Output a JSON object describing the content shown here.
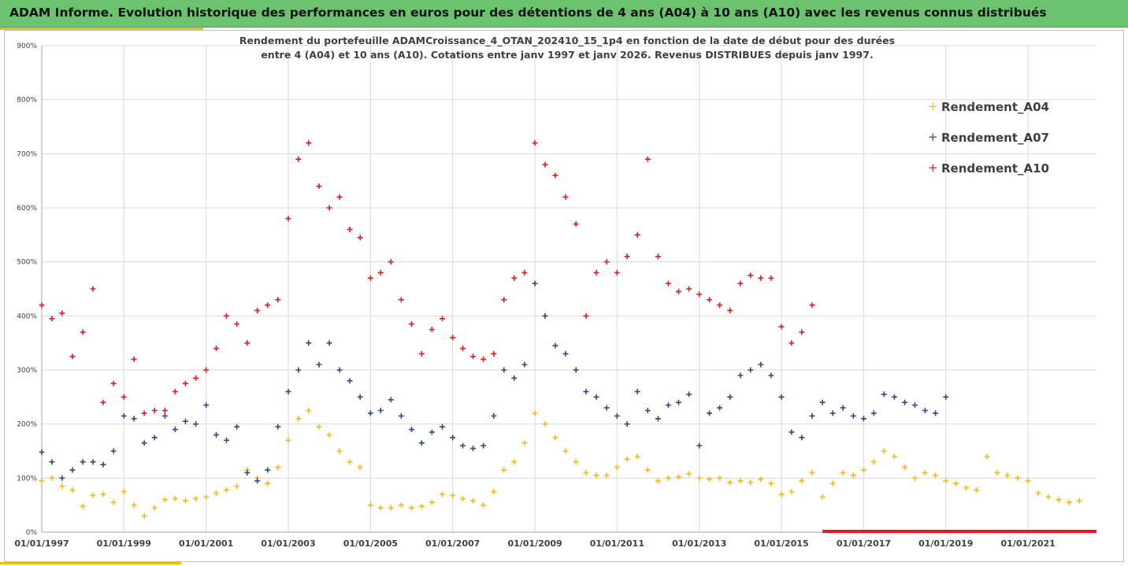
{
  "header": {
    "title": "ADAM Informe. Evolution historique des performances en euros pour des détentions de 4 ans (A04) à 10 ans (A10) avec les revenus connus distribués",
    "background_color": "#6cc36f",
    "accent_color": "#f0c000"
  },
  "chart_data": {
    "type": "scatter",
    "title_lines": [
      "Rendement du portefeuille ADAMCroissance_4_OTAN_202410_15_1p4  en fonction de la date de début pour des durées",
      "entre 4 (A04) et 10 ans (A10). Cotations entre janv 1997 et janv 2026. Revenus DISTRIBUES depuis janv 1997."
    ],
    "xlabel": "",
    "ylabel": "",
    "x_range": [
      "1997-01-01",
      "2022-09-01"
    ],
    "ylim": [
      0,
      900
    ],
    "y_ticks": [
      0,
      100,
      200,
      300,
      400,
      500,
      600,
      700,
      800,
      900
    ],
    "y_tick_labels": [
      "0%",
      "100%",
      "200%",
      "300%",
      "400%",
      "500%",
      "600%",
      "700%",
      "800%",
      "900%"
    ],
    "x_tick_labels": [
      "01/01/1997",
      "01/01/1999",
      "01/01/2001",
      "01/01/2003",
      "01/01/2005",
      "01/01/2007",
      "01/01/2009",
      "01/01/2011",
      "01/01/2013",
      "01/01/2015",
      "01/01/2017",
      "01/01/2019",
      "01/01/2021"
    ],
    "grid": true,
    "marker": "+",
    "legend_position": "right",
    "series": [
      {
        "name": "Rendement_A04",
        "color": "#f7b818",
        "points": [
          [
            "1997-01-01",
            95
          ],
          [
            "1997-04-01",
            100
          ],
          [
            "1997-07-01",
            85
          ],
          [
            "1997-10-01",
            78
          ],
          [
            "1998-01-01",
            48
          ],
          [
            "1998-04-01",
            68
          ],
          [
            "1998-07-01",
            70
          ],
          [
            "1998-10-01",
            55
          ],
          [
            "1999-01-01",
            75
          ],
          [
            "1999-04-01",
            50
          ],
          [
            "1999-07-01",
            30
          ],
          [
            "1999-10-01",
            45
          ],
          [
            "2000-01-01",
            60
          ],
          [
            "2000-04-01",
            62
          ],
          [
            "2000-07-01",
            58
          ],
          [
            "2000-10-01",
            62
          ],
          [
            "2001-01-01",
            65
          ],
          [
            "2001-04-01",
            72
          ],
          [
            "2001-07-01",
            78
          ],
          [
            "2001-10-01",
            85
          ],
          [
            "2002-01-01",
            115
          ],
          [
            "2002-04-01",
            100
          ],
          [
            "2002-07-01",
            90
          ],
          [
            "2002-10-01",
            120
          ],
          [
            "2003-01-01",
            170
          ],
          [
            "2003-04-01",
            210
          ],
          [
            "2003-07-01",
            225
          ],
          [
            "2003-10-01",
            195
          ],
          [
            "2004-01-01",
            180
          ],
          [
            "2004-04-01",
            150
          ],
          [
            "2004-07-01",
            130
          ],
          [
            "2004-10-01",
            120
          ],
          [
            "2005-01-01",
            50
          ],
          [
            "2005-04-01",
            45
          ],
          [
            "2005-07-01",
            45
          ],
          [
            "2005-10-01",
            50
          ],
          [
            "2006-01-01",
            45
          ],
          [
            "2006-04-01",
            48
          ],
          [
            "2006-07-01",
            55
          ],
          [
            "2006-10-01",
            70
          ],
          [
            "2007-01-01",
            68
          ],
          [
            "2007-04-01",
            62
          ],
          [
            "2007-07-01",
            58
          ],
          [
            "2007-10-01",
            50
          ],
          [
            "2008-01-01",
            75
          ],
          [
            "2008-04-01",
            115
          ],
          [
            "2008-07-01",
            130
          ],
          [
            "2008-10-01",
            165
          ],
          [
            "2009-01-01",
            220
          ],
          [
            "2009-04-01",
            200
          ],
          [
            "2009-07-01",
            175
          ],
          [
            "2009-10-01",
            150
          ],
          [
            "2010-01-01",
            130
          ],
          [
            "2010-04-01",
            110
          ],
          [
            "2010-07-01",
            105
          ],
          [
            "2010-10-01",
            105
          ],
          [
            "2011-01-01",
            120
          ],
          [
            "2011-04-01",
            135
          ],
          [
            "2011-07-01",
            140
          ],
          [
            "2011-10-01",
            115
          ],
          [
            "2012-01-01",
            95
          ],
          [
            "2012-04-01",
            100
          ],
          [
            "2012-07-01",
            102
          ],
          [
            "2012-10-01",
            108
          ],
          [
            "2013-01-01",
            100
          ],
          [
            "2013-04-01",
            98
          ],
          [
            "2013-07-01",
            100
          ],
          [
            "2013-10-01",
            92
          ],
          [
            "2014-01-01",
            95
          ],
          [
            "2014-04-01",
            92
          ],
          [
            "2014-07-01",
            98
          ],
          [
            "2014-10-01",
            90
          ],
          [
            "2015-01-01",
            70
          ],
          [
            "2015-04-01",
            75
          ],
          [
            "2015-07-01",
            95
          ],
          [
            "2015-10-01",
            110
          ],
          [
            "2016-01-01",
            65
          ],
          [
            "2016-04-01",
            90
          ],
          [
            "2016-07-01",
            110
          ],
          [
            "2016-10-01",
            105
          ],
          [
            "2017-01-01",
            115
          ],
          [
            "2017-04-01",
            130
          ],
          [
            "2017-07-01",
            150
          ],
          [
            "2017-10-01",
            140
          ],
          [
            "2018-01-01",
            120
          ],
          [
            "2018-04-01",
            100
          ],
          [
            "2018-07-01",
            110
          ],
          [
            "2018-10-01",
            105
          ],
          [
            "2019-01-01",
            95
          ],
          [
            "2019-04-01",
            90
          ],
          [
            "2019-07-01",
            82
          ],
          [
            "2019-10-01",
            78
          ],
          [
            "2020-01-01",
            140
          ],
          [
            "2020-04-01",
            110
          ],
          [
            "2020-07-01",
            105
          ],
          [
            "2020-10-01",
            100
          ],
          [
            "2021-01-01",
            95
          ],
          [
            "2021-04-01",
            72
          ],
          [
            "2021-07-01",
            65
          ],
          [
            "2021-10-01",
            60
          ],
          [
            "2022-01-01",
            55
          ],
          [
            "2022-04-01",
            58
          ]
        ]
      },
      {
        "name": "Rendement_A07",
        "color": "#2f4a7a",
        "points": [
          [
            "1997-01-01",
            148
          ],
          [
            "1997-04-01",
            130
          ],
          [
            "1997-07-01",
            100
          ],
          [
            "1997-10-01",
            115
          ],
          [
            "1998-01-01",
            130
          ],
          [
            "1998-04-01",
            130
          ],
          [
            "1998-07-01",
            125
          ],
          [
            "1998-10-01",
            150
          ],
          [
            "1999-01-01",
            215
          ],
          [
            "1999-04-01",
            210
          ],
          [
            "1999-07-01",
            165
          ],
          [
            "1999-10-01",
            175
          ],
          [
            "2000-01-01",
            215
          ],
          [
            "2000-04-01",
            190
          ],
          [
            "2000-07-01",
            205
          ],
          [
            "2000-10-01",
            200
          ],
          [
            "2001-01-01",
            235
          ],
          [
            "2001-04-01",
            180
          ],
          [
            "2001-07-01",
            170
          ],
          [
            "2001-10-01",
            195
          ],
          [
            "2002-01-01",
            110
          ],
          [
            "2002-04-01",
            95
          ],
          [
            "2002-07-01",
            115
          ],
          [
            "2002-10-01",
            195
          ],
          [
            "2003-01-01",
            260
          ],
          [
            "2003-04-01",
            300
          ],
          [
            "2003-07-01",
            350
          ],
          [
            "2003-10-01",
            310
          ],
          [
            "2004-01-01",
            350
          ],
          [
            "2004-04-01",
            300
          ],
          [
            "2004-07-01",
            280
          ],
          [
            "2004-10-01",
            250
          ],
          [
            "2005-01-01",
            220
          ],
          [
            "2005-04-01",
            225
          ],
          [
            "2005-07-01",
            245
          ],
          [
            "2005-10-01",
            215
          ],
          [
            "2006-01-01",
            190
          ],
          [
            "2006-04-01",
            165
          ],
          [
            "2006-07-01",
            185
          ],
          [
            "2006-10-01",
            195
          ],
          [
            "2007-01-01",
            175
          ],
          [
            "2007-04-01",
            160
          ],
          [
            "2007-07-01",
            155
          ],
          [
            "2007-10-01",
            160
          ],
          [
            "2008-01-01",
            215
          ],
          [
            "2008-04-01",
            300
          ],
          [
            "2008-07-01",
            285
          ],
          [
            "2008-10-01",
            310
          ],
          [
            "2009-01-01",
            460
          ],
          [
            "2009-04-01",
            400
          ],
          [
            "2009-07-01",
            345
          ],
          [
            "2009-10-01",
            330
          ],
          [
            "2010-01-01",
            300
          ],
          [
            "2010-04-01",
            260
          ],
          [
            "2010-07-01",
            250
          ],
          [
            "2010-10-01",
            230
          ],
          [
            "2011-01-01",
            215
          ],
          [
            "2011-04-01",
            200
          ],
          [
            "2011-07-01",
            260
          ],
          [
            "2011-10-01",
            225
          ],
          [
            "2012-01-01",
            210
          ],
          [
            "2012-04-01",
            235
          ],
          [
            "2012-07-01",
            240
          ],
          [
            "2012-10-01",
            255
          ],
          [
            "2013-01-01",
            160
          ],
          [
            "2013-04-01",
            220
          ],
          [
            "2013-07-01",
            230
          ],
          [
            "2013-10-01",
            250
          ],
          [
            "2014-01-01",
            290
          ],
          [
            "2014-04-01",
            300
          ],
          [
            "2014-07-01",
            310
          ],
          [
            "2014-10-01",
            290
          ],
          [
            "2015-01-01",
            250
          ],
          [
            "2015-04-01",
            185
          ],
          [
            "2015-07-01",
            175
          ],
          [
            "2015-10-01",
            215
          ],
          [
            "2016-01-01",
            240
          ],
          [
            "2016-04-01",
            220
          ],
          [
            "2016-07-01",
            230
          ],
          [
            "2016-10-01",
            215
          ],
          [
            "2017-01-01",
            210
          ],
          [
            "2017-04-01",
            220
          ],
          [
            "2017-07-01",
            255
          ],
          [
            "2017-10-01",
            250
          ],
          [
            "2018-01-01",
            240
          ],
          [
            "2018-04-01",
            235
          ],
          [
            "2018-07-01",
            225
          ],
          [
            "2018-10-01",
            220
          ],
          [
            "2019-01-01",
            250
          ]
        ]
      },
      {
        "name": "Rendement_A10",
        "color": "#e3191e",
        "points": [
          [
            "1997-01-01",
            420
          ],
          [
            "1997-04-01",
            395
          ],
          [
            "1997-07-01",
            405
          ],
          [
            "1997-10-01",
            325
          ],
          [
            "1998-01-01",
            370
          ],
          [
            "1998-04-01",
            450
          ],
          [
            "1998-07-01",
            240
          ],
          [
            "1998-10-01",
            275
          ],
          [
            "1999-01-01",
            250
          ],
          [
            "1999-04-01",
            320
          ],
          [
            "1999-07-01",
            220
          ],
          [
            "1999-10-01",
            225
          ],
          [
            "2000-01-01",
            225
          ],
          [
            "2000-04-01",
            260
          ],
          [
            "2000-07-01",
            275
          ],
          [
            "2000-10-01",
            285
          ],
          [
            "2001-01-01",
            300
          ],
          [
            "2001-04-01",
            340
          ],
          [
            "2001-07-01",
            400
          ],
          [
            "2001-10-01",
            385
          ],
          [
            "2002-01-01",
            350
          ],
          [
            "2002-04-01",
            410
          ],
          [
            "2002-07-01",
            420
          ],
          [
            "2002-10-01",
            430
          ],
          [
            "2003-01-01",
            580
          ],
          [
            "2003-04-01",
            690
          ],
          [
            "2003-07-01",
            720
          ],
          [
            "2003-10-01",
            640
          ],
          [
            "2004-01-01",
            600
          ],
          [
            "2004-04-01",
            620
          ],
          [
            "2004-07-01",
            560
          ],
          [
            "2004-10-01",
            545
          ],
          [
            "2005-01-01",
            470
          ],
          [
            "2005-04-01",
            480
          ],
          [
            "2005-07-01",
            500
          ],
          [
            "2005-10-01",
            430
          ],
          [
            "2006-01-01",
            385
          ],
          [
            "2006-04-01",
            330
          ],
          [
            "2006-07-01",
            375
          ],
          [
            "2006-10-01",
            395
          ],
          [
            "2007-01-01",
            360
          ],
          [
            "2007-04-01",
            340
          ],
          [
            "2007-07-01",
            325
          ],
          [
            "2007-10-01",
            320
          ],
          [
            "2008-01-01",
            330
          ],
          [
            "2008-04-01",
            430
          ],
          [
            "2008-07-01",
            470
          ],
          [
            "2008-10-01",
            480
          ],
          [
            "2009-01-01",
            720
          ],
          [
            "2009-04-01",
            680
          ],
          [
            "2009-07-01",
            660
          ],
          [
            "2009-10-01",
            620
          ],
          [
            "2010-01-01",
            570
          ],
          [
            "2010-04-01",
            400
          ],
          [
            "2010-07-01",
            480
          ],
          [
            "2010-10-01",
            500
          ],
          [
            "2011-01-01",
            480
          ],
          [
            "2011-04-01",
            510
          ],
          [
            "2011-07-01",
            550
          ],
          [
            "2011-10-01",
            690
          ],
          [
            "2012-01-01",
            510
          ],
          [
            "2012-04-01",
            460
          ],
          [
            "2012-07-01",
            445
          ],
          [
            "2012-10-01",
            450
          ],
          [
            "2013-01-01",
            440
          ],
          [
            "2013-04-01",
            430
          ],
          [
            "2013-07-01",
            420
          ],
          [
            "2013-10-01",
            410
          ],
          [
            "2014-01-01",
            460
          ],
          [
            "2014-04-01",
            475
          ],
          [
            "2014-07-01",
            470
          ],
          [
            "2014-10-01",
            470
          ],
          [
            "2015-01-01",
            380
          ],
          [
            "2015-04-01",
            350
          ],
          [
            "2015-07-01",
            370
          ],
          [
            "2015-10-01",
            420
          ]
        ]
      },
      {
        "name": "",
        "color": "#e3191e",
        "marker": "line",
        "segment": [
          [
            "2016-01-01",
            0
          ],
          [
            "2022-09-01",
            0
          ]
        ]
      }
    ]
  }
}
